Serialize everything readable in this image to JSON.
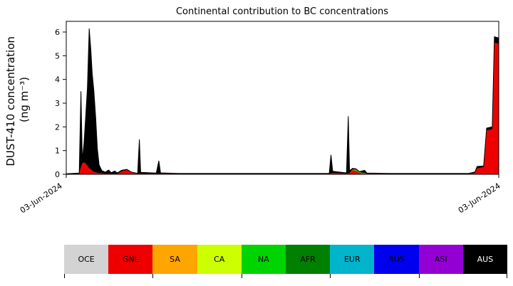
{
  "chart_data": {
    "type": "area",
    "stacked": true,
    "title": "Continental contribution to BC concentrations",
    "ylabel_line1": "DUST-410 concentration",
    "ylabel_line2": "(ng m⁻³)",
    "y_ticks": [
      0,
      1,
      2,
      3,
      4,
      5,
      6
    ],
    "ylim": [
      0,
      6.45
    ],
    "grid": false,
    "x_tick_labels": [
      "03-Jun-2024",
      "03-Jun-2024"
    ],
    "x": [
      0.0,
      0.03,
      0.034,
      0.037,
      0.041,
      0.045,
      0.049,
      0.053,
      0.057,
      0.06,
      0.064,
      0.068,
      0.072,
      0.076,
      0.082,
      0.09,
      0.098,
      0.104,
      0.112,
      0.118,
      0.128,
      0.14,
      0.15,
      0.165,
      0.169,
      0.172,
      0.208,
      0.214,
      0.218,
      0.26,
      0.35,
      0.45,
      0.55,
      0.608,
      0.612,
      0.616,
      0.648,
      0.652,
      0.655,
      0.662,
      0.67,
      0.678,
      0.69,
      0.695,
      0.75,
      0.85,
      0.93,
      0.945,
      0.95,
      0.965,
      0.972,
      0.985,
      0.99,
      1.0
    ],
    "series": [
      {
        "name": "GNL",
        "color": "#ee0000",
        "values": [
          0,
          0.02,
          0.3,
          0.45,
          0.5,
          0.45,
          0.35,
          0.25,
          0.2,
          0.15,
          0.1,
          0.08,
          0.06,
          0.05,
          0.04,
          0.03,
          0.03,
          0.02,
          0.02,
          0.02,
          0.12,
          0.18,
          0.08,
          0.02,
          0.02,
          0.02,
          0.02,
          0.02,
          0.02,
          0.02,
          0.02,
          0.02,
          0.02,
          0.02,
          0.04,
          0.05,
          0.03,
          0.03,
          0.05,
          0.18,
          0.15,
          0.06,
          0.03,
          0.02,
          0.02,
          0.02,
          0.02,
          0.05,
          0.25,
          0.3,
          1.85,
          1.9,
          5.55,
          5.5
        ]
      },
      {
        "name": "NA",
        "color": "#00d400",
        "values": [
          0,
          0,
          0,
          0,
          0,
          0,
          0,
          0,
          0,
          0,
          0,
          0,
          0,
          0,
          0,
          0,
          0,
          0,
          0,
          0,
          0,
          0,
          0,
          0,
          0,
          0,
          0,
          0,
          0,
          0,
          0,
          0,
          0,
          0,
          0,
          0,
          0,
          0,
          0,
          0.02,
          0.05,
          0.03,
          0.02,
          0,
          0,
          0,
          0,
          0,
          0,
          0,
          0,
          0,
          0,
          0
        ]
      },
      {
        "name": "AUS",
        "color": "#000000",
        "values": [
          0.02,
          0.03,
          3.2,
          0.15,
          0.8,
          2.0,
          3.3,
          5.9,
          5.0,
          4.1,
          3.4,
          2.3,
          1.0,
          0.35,
          0.12,
          0.06,
          0.15,
          0.05,
          0.12,
          0.04,
          0.05,
          0.03,
          0.02,
          0.02,
          1.45,
          0.06,
          0.03,
          0.55,
          0.04,
          0.02,
          0.02,
          0.02,
          0.02,
          0.02,
          0.78,
          0.08,
          0.03,
          2.42,
          0.1,
          0.05,
          0.03,
          0.02,
          0.12,
          0.03,
          0.02,
          0.02,
          0.02,
          0.05,
          0.08,
          0.05,
          0.1,
          0.1,
          0.25,
          0.25
        ]
      }
    ],
    "legend": [
      {
        "label": "OCE",
        "color": "#d3d3d3",
        "text_color": "#000000"
      },
      {
        "label": "GNL",
        "color": "#ee0000",
        "text_color": "#000000"
      },
      {
        "label": "SA",
        "color": "#ffa500",
        "text_color": "#000000"
      },
      {
        "label": "CA",
        "color": "#ccff00",
        "text_color": "#000000"
      },
      {
        "label": "NA",
        "color": "#00d400",
        "text_color": "#000000"
      },
      {
        "label": "AFR",
        "color": "#008000",
        "text_color": "#000000"
      },
      {
        "label": "EUR",
        "color": "#00b4cc",
        "text_color": "#000000"
      },
      {
        "label": "RUS",
        "color": "#0000ee",
        "text_color": "#000000"
      },
      {
        "label": "ASI",
        "color": "#9400d3",
        "text_color": "#000000"
      },
      {
        "label": "AUS",
        "color": "#000000",
        "text_color": "#ffffff"
      }
    ]
  }
}
